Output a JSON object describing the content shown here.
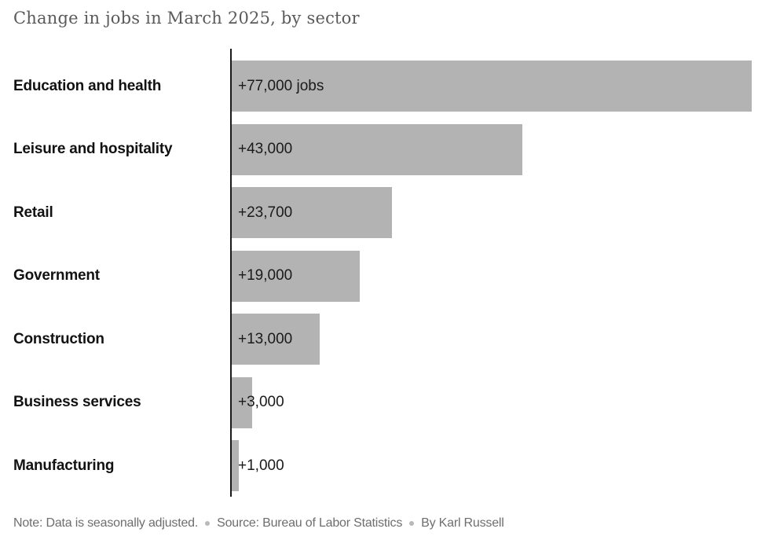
{
  "title": "Change in jobs in March 2025, by sector",
  "chart_data": {
    "type": "bar",
    "orientation": "horizontal",
    "title": "Change in jobs in March 2025, by sector",
    "categories": [
      "Education and health",
      "Leisure and hospitality",
      "Retail",
      "Government",
      "Construction",
      "Business services",
      "Manufacturing"
    ],
    "values": [
      77000,
      43000,
      23700,
      19000,
      13000,
      3000,
      1000
    ],
    "value_labels": [
      "+77,000 jobs",
      "+43,000",
      "+23,700",
      "+19,000",
      "+13,000",
      "+3,000",
      "+1,000"
    ],
    "xlabel": "",
    "ylabel": "",
    "xlim": [
      0,
      77000
    ],
    "grid": false,
    "legend": "none",
    "bar_color": "#b3b3b3",
    "axis_color": "#1a1a1a",
    "label_color": "#121212",
    "value_label_color": "#1a1a1a"
  },
  "footer": {
    "note": "Note: Data is seasonally adjusted.",
    "source": "Source: Bureau of Labor Statistics",
    "byline": "By Karl Russell"
  },
  "colors": {
    "background": "#ffffff",
    "title_text": "#5a5a5a",
    "footer_text": "#6e6e6e",
    "separator_dot": "#b9b9b9"
  }
}
